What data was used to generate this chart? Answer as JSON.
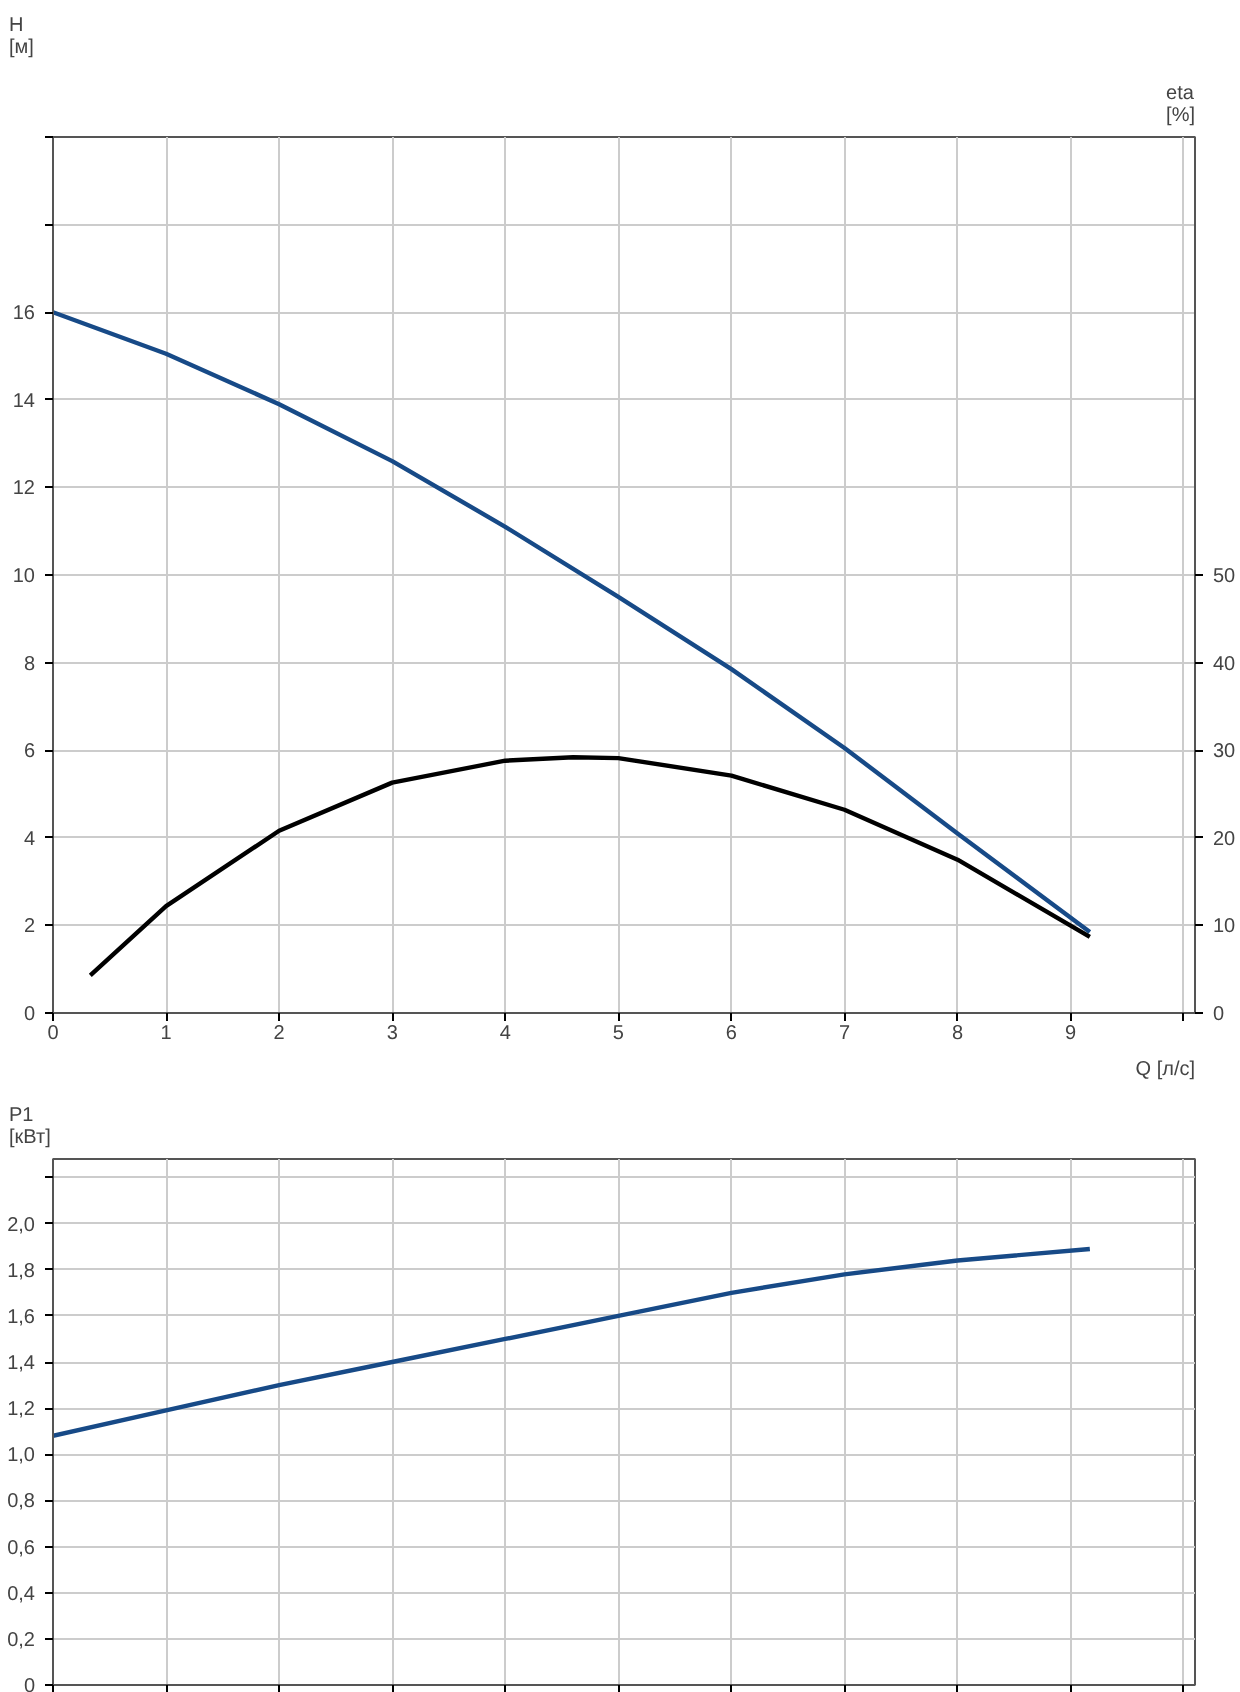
{
  "chart_data": [
    {
      "type": "line",
      "xlabel": "Q [л/с]",
      "ylabel": "H\n[м]",
      "y2label": "eta\n[%]",
      "xlim": [
        0,
        10.1
      ],
      "xticks": [
        0,
        1,
        2,
        3,
        4,
        5,
        6,
        7,
        8,
        9,
        {
          "value": 10,
          "label": null
        }
      ],
      "ylim": [
        0,
        20
      ],
      "yticks": [
        0,
        2,
        4,
        6,
        8,
        10,
        12,
        14,
        16,
        {
          "value": 18,
          "label": null
        },
        {
          "value": 20,
          "label": null
        }
      ],
      "y2lim": [
        0,
        100
      ],
      "y2ticks": [
        0,
        10,
        20,
        30,
        40,
        50
      ],
      "grid": true,
      "marker": "none",
      "line_style": "solid",
      "series": [
        {
          "color": "#174a87",
          "x": [
            0,
            1,
            2,
            3,
            4,
            5,
            6,
            7,
            8,
            9.17
          ],
          "values": [
            16,
            15.05,
            13.9,
            12.6,
            11.1,
            9.5,
            7.85,
            6.05,
            4.1,
            1.85
          ]
        },
        {
          "color": "#000000",
          "axis": "y2",
          "x": [
            0.33,
            1,
            2,
            3,
            4,
            4.6,
            5,
            6,
            7,
            8,
            9.17
          ],
          "values": [
            4.3,
            12.2,
            20.8,
            26.3,
            28.8,
            29.2,
            29.1,
            27.1,
            23.2,
            17.5,
            8.7
          ]
        }
      ]
    },
    {
      "type": "line",
      "ylabel": "P1\n[кВт]",
      "xlim": [
        0,
        10.1
      ],
      "xticks": [
        0,
        1,
        2,
        3,
        4,
        5,
        6,
        7,
        8,
        9,
        10
      ],
      "ylim": [
        0,
        2.28
      ],
      "yticks": [
        {
          "value": 0,
          "label": "0"
        },
        {
          "value": 0.2,
          "label": "0,2"
        },
        {
          "value": 0.4,
          "label": "0,4"
        },
        {
          "value": 0.6,
          "label": "0,6"
        },
        {
          "value": 0.8,
          "label": "0,8"
        },
        {
          "value": 1.0,
          "label": "1,0"
        },
        {
          "value": 1.2,
          "label": "1,2"
        },
        {
          "value": 1.4,
          "label": "1,4"
        },
        {
          "value": 1.6,
          "label": "1,6"
        },
        {
          "value": 1.8,
          "label": "1,8"
        },
        {
          "value": 2.0,
          "label": "2,0"
        },
        {
          "value": 2.2,
          "label": null
        }
      ],
      "tick_labels": "y",
      "grid": true,
      "marker": "none",
      "line_style": "solid",
      "series": [
        {
          "color": "#174a87",
          "x": [
            0,
            1,
            2,
            3,
            4,
            5,
            6,
            7,
            8,
            9.17
          ],
          "values": [
            1.08,
            1.19,
            1.3,
            1.4,
            1.5,
            1.6,
            1.7,
            1.78,
            1.84,
            1.89
          ]
        }
      ]
    }
  ]
}
